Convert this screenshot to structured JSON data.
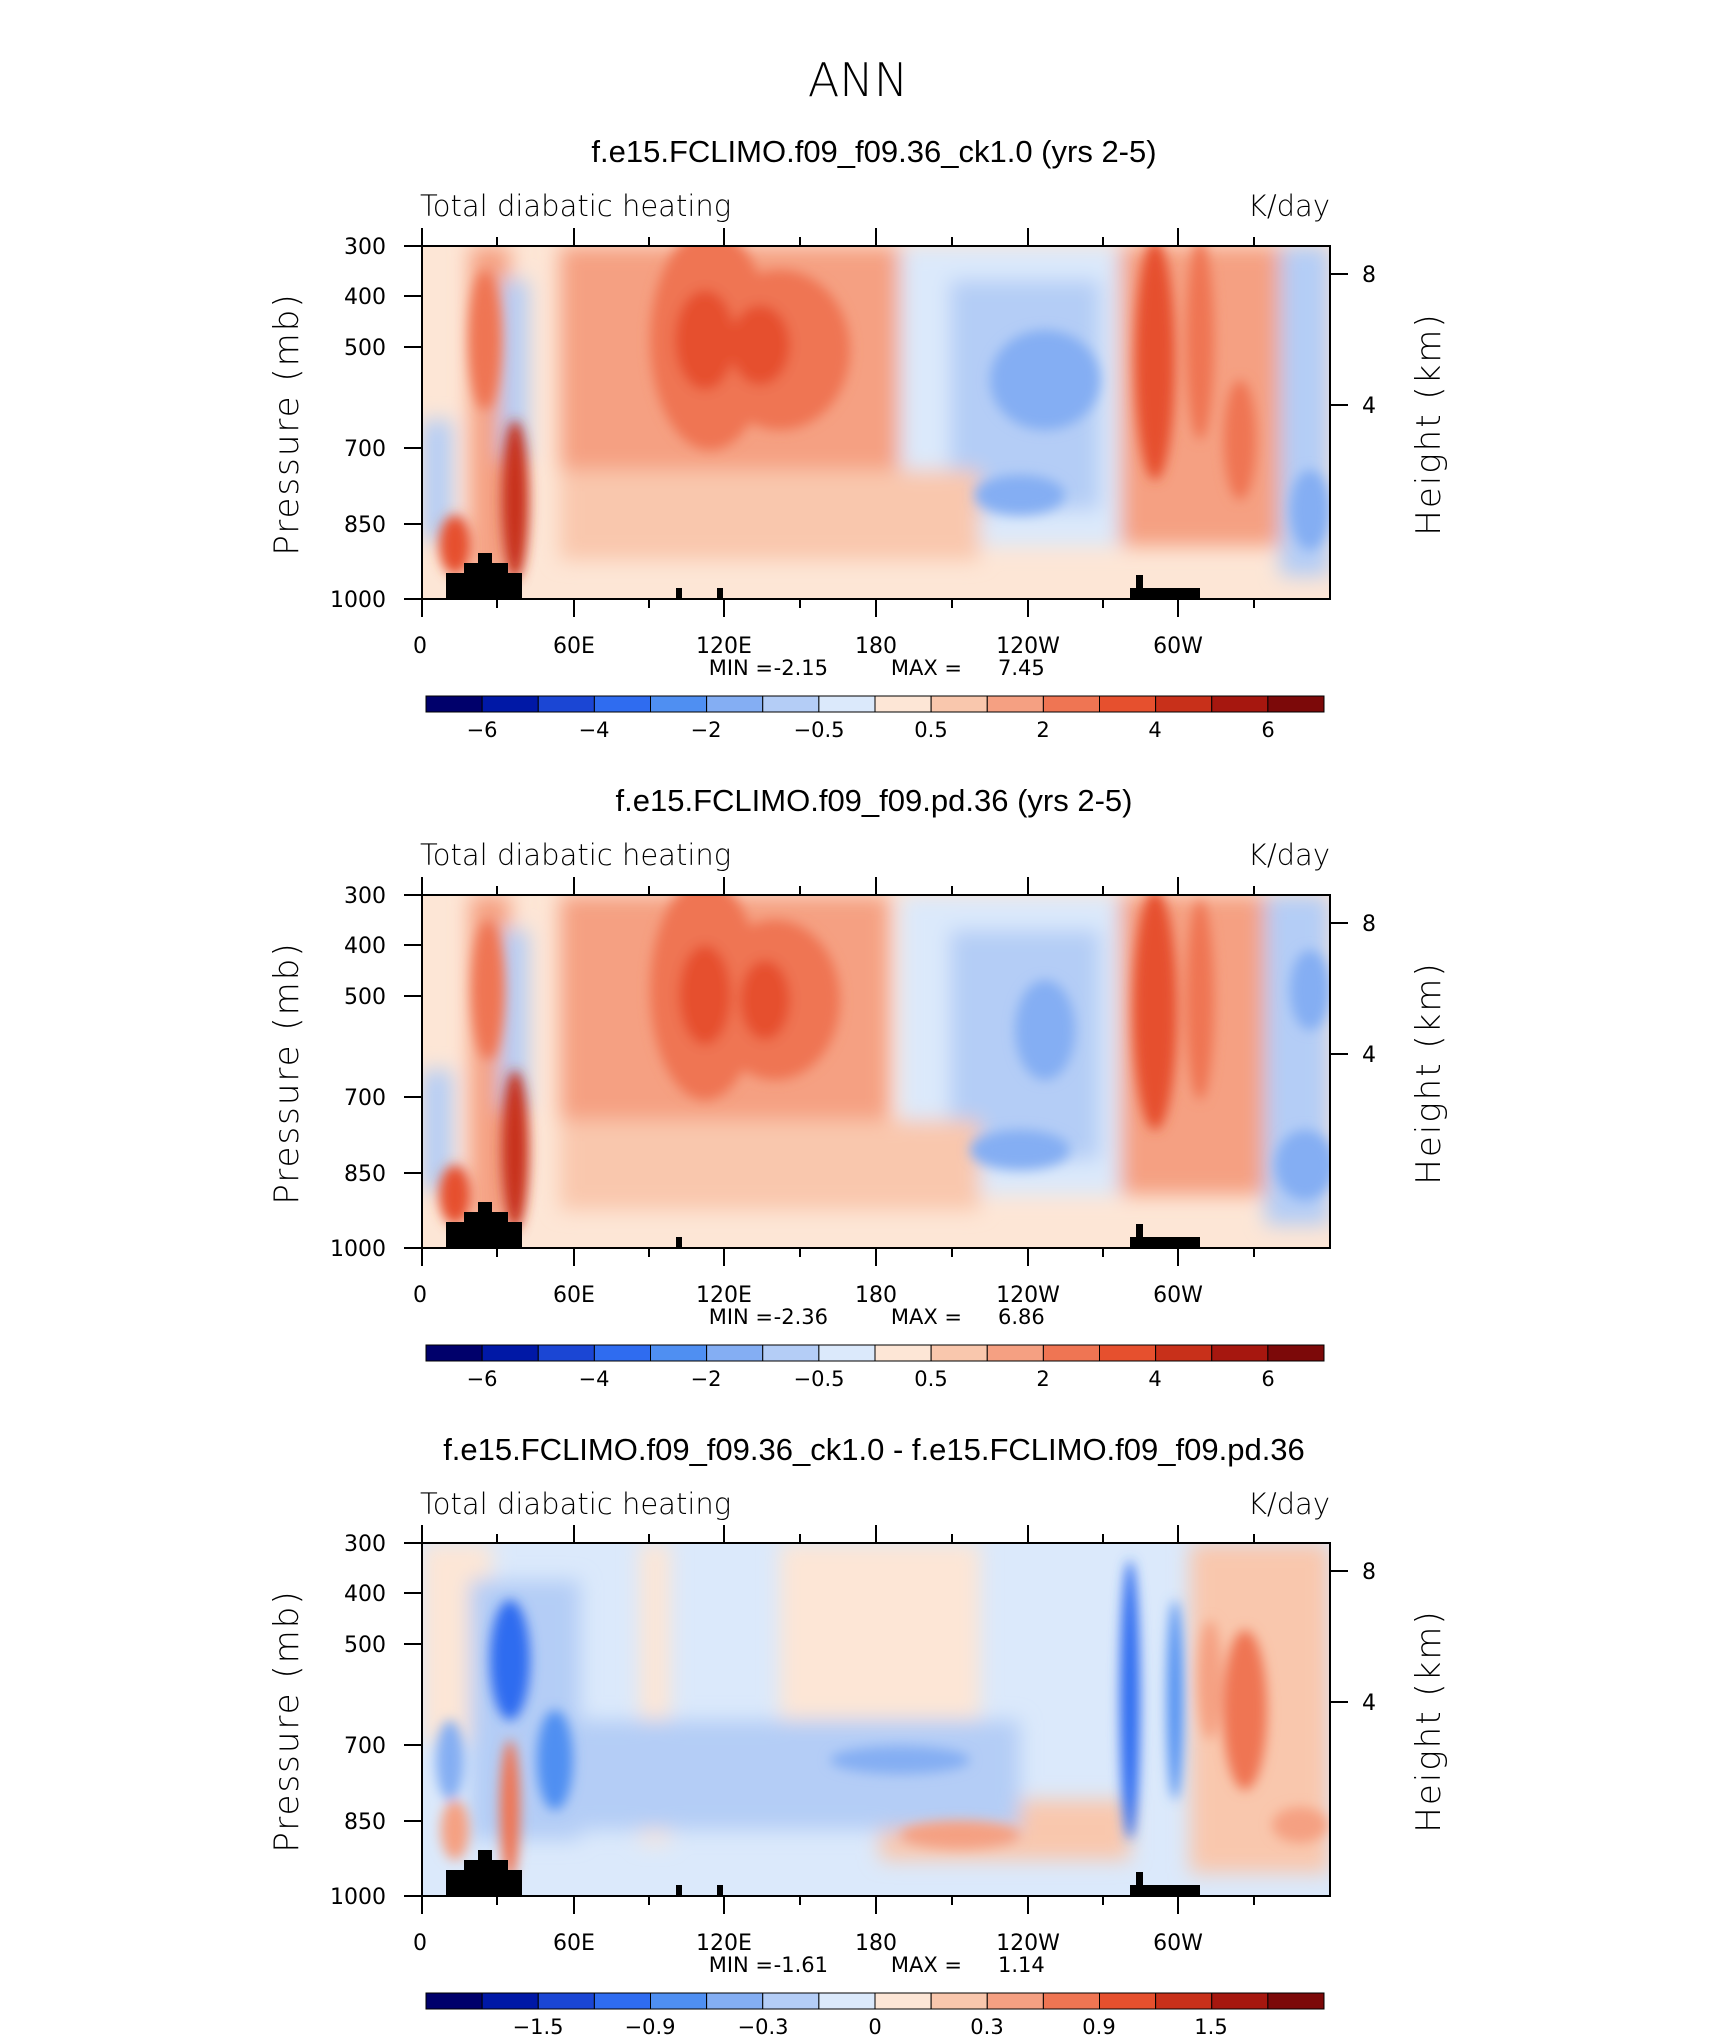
{
  "title": "ANN",
  "colors": {
    "abs_scale": [
      "#00006b",
      "#0018a6",
      "#1b46d4",
      "#2f6cf0",
      "#4f8ff2",
      "#84aef3",
      "#b4cdf6",
      "#dbe9fb",
      "#fde6d6",
      "#f9c7ad",
      "#f5a082",
      "#ef7553",
      "#e6502e",
      "#c8301a",
      "#a6170f",
      "#7c0909"
    ],
    "diff_scale": [
      "#00006b",
      "#0018a6",
      "#1b46d4",
      "#2f6cf0",
      "#4f8ff2",
      "#84aef3",
      "#b4cdf6",
      "#dbe9fb",
      "#fde6d6",
      "#f9c7ad",
      "#f5a082",
      "#ef7553",
      "#e6502e",
      "#c8301a",
      "#a6170f",
      "#7c0909"
    ],
    "topography": "#000000"
  },
  "axes": {
    "ylabel_left": "Pressure (mb)",
    "ylabel_right": "Height (km)",
    "pressure_ticks": [
      "300",
      "400",
      "500",
      "700",
      "850",
      "1000"
    ],
    "height_ticks": [
      "8",
      "4"
    ],
    "lon_ticks": [
      "0",
      "60E",
      "120E",
      "180",
      "120W",
      "60W"
    ],
    "min_label": "MIN =",
    "max_label": "MAX ="
  },
  "panels": [
    {
      "title": "f.e15.FCLIMO.f09_f09.36_ck1.0 (yrs 2-5)",
      "variable": "Total diabatic heating",
      "units": "K/day",
      "min": "-2.15",
      "max": "7.45",
      "colorbar_labels": [
        "−6",
        "−4",
        "−2",
        "−0.5",
        "0.5",
        "2",
        "4",
        "6"
      ]
    },
    {
      "title": "f.e15.FCLIMO.f09_f09.pd.36 (yrs 2-5)",
      "variable": "Total diabatic heating",
      "units": "K/day",
      "min": "-2.36",
      "max": "6.86",
      "colorbar_labels": [
        "−6",
        "−4",
        "−2",
        "−0.5",
        "0.5",
        "2",
        "4",
        "6"
      ]
    },
    {
      "title": "f.e15.FCLIMO.f09_f09.36_ck1.0 - f.e15.FCLIMO.f09_f09.pd.36",
      "variable": "Total diabatic heating",
      "units": "K/day",
      "min": "-1.61",
      "max": "1.14",
      "colorbar_labels": [
        "−1.5",
        "−0.9",
        "−0.3",
        "0",
        "0.3",
        "0.9",
        "1.5"
      ]
    }
  ],
  "chart_data": [
    {
      "type": "heatmap",
      "title": "f.e15.FCLIMO.f09_f09.36_ck1.0 (yrs 2-5)",
      "variable": "Total diabatic heating",
      "units": "K/day",
      "ylabel": "Pressure (mb)",
      "y2label": "Height (km)",
      "x": [
        0,
        60,
        120,
        180,
        240,
        300,
        360
      ],
      "ylim": [
        1000,
        300
      ],
      "color_levels": [
        -6,
        -5,
        -4,
        -3,
        -2,
        -1,
        -0.5,
        0,
        0.5,
        1,
        2,
        3,
        4,
        5,
        6
      ],
      "min": -2.15,
      "max": 7.45
    },
    {
      "type": "heatmap",
      "title": "f.e15.FCLIMO.f09_f09.pd.36 (yrs 2-5)",
      "variable": "Total diabatic heating",
      "units": "K/day",
      "ylabel": "Pressure (mb)",
      "y2label": "Height (km)",
      "x": [
        0,
        60,
        120,
        180,
        240,
        300,
        360
      ],
      "ylim": [
        1000,
        300
      ],
      "color_levels": [
        -6,
        -5,
        -4,
        -3,
        -2,
        -1,
        -0.5,
        0,
        0.5,
        1,
        2,
        3,
        4,
        5,
        6
      ],
      "min": -2.36,
      "max": 6.86
    },
    {
      "type": "heatmap",
      "title": "f.e15.FCLIMO.f09_f09.36_ck1.0 - f.e15.FCLIMO.f09_f09.pd.36",
      "variable": "Total diabatic heating",
      "units": "K/day",
      "ylabel": "Pressure (mb)",
      "y2label": "Height (km)",
      "x": [
        0,
        60,
        120,
        180,
        240,
        300,
        360
      ],
      "ylim": [
        1000,
        300
      ],
      "color_levels": [
        -1.8,
        -1.5,
        -1.2,
        -0.9,
        -0.6,
        -0.3,
        -0.1,
        0,
        0.1,
        0.3,
        0.6,
        0.9,
        1.2,
        1.5,
        1.8
      ],
      "min": -1.61,
      "max": 1.14
    }
  ]
}
